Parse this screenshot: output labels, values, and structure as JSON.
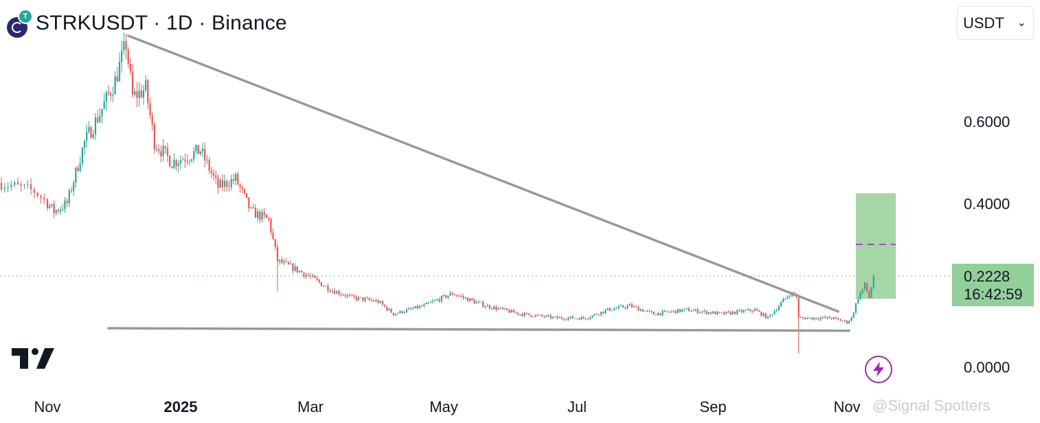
{
  "header": {
    "title": "STRKUSDT · 1D · Binance",
    "logo_badge": "T",
    "currency_select": "USDT"
  },
  "price_tag": {
    "price": "0.2228",
    "countdown": "16:42:59"
  },
  "watermark": "@Signal Spotters",
  "icons": {
    "brand": "tradingview-logo-icon",
    "bolt": "lightning-bolt-icon",
    "selector": "chevron-down-icon"
  },
  "colors": {
    "up": "#26a69a",
    "down": "#ef5350",
    "trendline": "#999999",
    "target_zone": "#a5d6a7",
    "target_mid": "#9c27b0",
    "price_line": "#93cf9b"
  },
  "chart_data": {
    "type": "candlestick",
    "symbol": "STRKUSDT",
    "interval": "1D",
    "exchange": "Binance",
    "x_ticks": [
      "Nov",
      "2025",
      "Mar",
      "May",
      "Jul",
      "Sep",
      "Nov"
    ],
    "x_tick_dates": [
      "2024-11-01",
      "2025-01-01",
      "2025-03-01",
      "2025-05-01",
      "2025-07-01",
      "2025-09-01",
      "2025-11-01"
    ],
    "y_ticks": [
      "0.6000",
      "0.4000",
      "0.0000"
    ],
    "y_tick_values": [
      0.6,
      0.4,
      0.0
    ],
    "current_price": 0.2228,
    "countdown": "16:42:59",
    "date_range": [
      "2024-10-18",
      "2025-11-14"
    ],
    "price_path": [
      [
        "2024-10-18",
        0.45
      ],
      [
        "2024-10-28",
        0.43
      ],
      [
        "2024-11-04",
        0.38
      ],
      [
        "2024-11-10",
        0.4
      ],
      [
        "2024-11-18",
        0.55
      ],
      [
        "2024-11-25",
        0.62
      ],
      [
        "2024-12-02",
        0.7
      ],
      [
        "2024-12-07",
        0.79
      ],
      [
        "2024-12-10",
        0.66
      ],
      [
        "2024-12-16",
        0.68
      ],
      [
        "2024-12-20",
        0.55
      ],
      [
        "2024-12-28",
        0.5
      ],
      [
        "2025-01-06",
        0.52
      ],
      [
        "2025-01-10",
        0.53
      ],
      [
        "2025-01-18",
        0.44
      ],
      [
        "2025-01-26",
        0.46
      ],
      [
        "2025-02-02",
        0.38
      ],
      [
        "2025-02-10",
        0.36
      ],
      [
        "2025-02-14",
        0.26
      ],
      [
        "2025-02-22",
        0.24
      ],
      [
        "2025-03-01",
        0.22
      ],
      [
        "2025-03-10",
        0.19
      ],
      [
        "2025-03-20",
        0.17
      ],
      [
        "2025-04-01",
        0.16
      ],
      [
        "2025-04-08",
        0.13
      ],
      [
        "2025-04-22",
        0.15
      ],
      [
        "2025-05-05",
        0.18
      ],
      [
        "2025-05-20",
        0.15
      ],
      [
        "2025-06-05",
        0.13
      ],
      [
        "2025-06-22",
        0.12
      ],
      [
        "2025-07-05",
        0.12
      ],
      [
        "2025-07-15",
        0.14
      ],
      [
        "2025-07-25",
        0.15
      ],
      [
        "2025-08-05",
        0.13
      ],
      [
        "2025-08-20",
        0.14
      ],
      [
        "2025-09-05",
        0.13
      ],
      [
        "2025-09-20",
        0.14
      ],
      [
        "2025-09-26",
        0.12
      ],
      [
        "2025-10-06",
        0.18
      ],
      [
        "2025-10-09",
        0.175
      ],
      [
        "2025-10-10",
        0.12
      ],
      [
        "2025-10-15",
        0.12
      ],
      [
        "2025-10-25",
        0.12
      ],
      [
        "2025-11-01",
        0.11
      ],
      [
        "2025-11-03",
        0.12
      ],
      [
        "2025-11-06",
        0.17
      ],
      [
        "2025-11-09",
        0.2
      ],
      [
        "2025-11-11",
        0.17
      ],
      [
        "2025-11-13",
        0.2228
      ]
    ],
    "wicks": [
      {
        "date": "2024-12-07",
        "high": 0.815
      },
      {
        "date": "2025-02-14",
        "low": 0.185
      },
      {
        "date": "2025-10-10",
        "low": 0.033
      }
    ],
    "drawings": {
      "descending_trendline": {
        "from": [
          "2024-12-08",
          0.81
        ],
        "to": [
          "2025-10-28",
          0.136
        ]
      },
      "support_line": {
        "from": [
          "2024-11-29",
          0.095
        ],
        "to": [
          "2025-11-02",
          0.089
        ]
      },
      "target_zone": {
        "from_date": "2025-11-05",
        "to_date": "2025-11-23",
        "low": 0.167,
        "high": 0.425,
        "mid": 0.3
      }
    },
    "grid": false,
    "legend": "none"
  }
}
